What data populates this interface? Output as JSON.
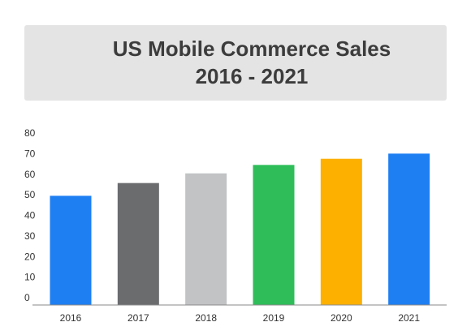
{
  "chart_data": {
    "type": "bar",
    "title": "US Mobile Commerce Sales",
    "subtitle": "2016 - 2021",
    "categories": [
      "2016",
      "2017",
      "2018",
      "2019",
      "2020",
      "2021"
    ],
    "values": [
      49.5,
      55.7,
      60.4,
      64.5,
      67.5,
      70.0
    ],
    "colors": [
      "#1e7ff3",
      "#6b6c6e",
      "#c1c3c5",
      "#2ebd59",
      "#fdb000",
      "#1e7ff3"
    ],
    "ylim": [
      0,
      80
    ],
    "yticks": [
      "0",
      "10",
      "20",
      "30",
      "40",
      "50",
      "60",
      "70",
      "80"
    ],
    "xlabel": "",
    "ylabel": "",
    "grid": false
  }
}
